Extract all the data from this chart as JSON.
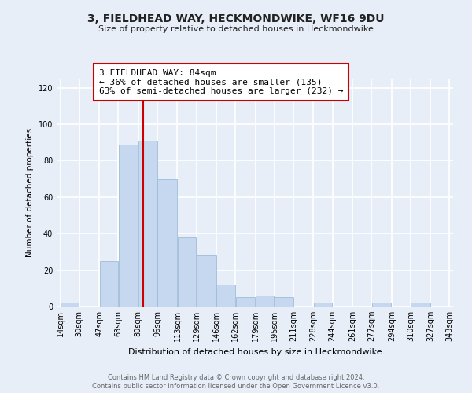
{
  "title": "3, FIELDHEAD WAY, HECKMONDWIKE, WF16 9DU",
  "subtitle": "Size of property relative to detached houses in Heckmondwike",
  "xlabel": "Distribution of detached houses by size in Heckmondwike",
  "ylabel": "Number of detached properties",
  "bar_color": "#c5d8f0",
  "bar_edge_color": "#a0bcd8",
  "red_line_color": "#cc0000",
  "annotation_title": "3 FIELDHEAD WAY: 84sqm",
  "annotation_line1": "← 36% of detached houses are smaller (135)",
  "annotation_line2": "63% of semi-detached houses are larger (232) →",
  "bin_edges": [
    14,
    30,
    47,
    63,
    80,
    96,
    113,
    129,
    146,
    162,
    179,
    195,
    211,
    228,
    244,
    261,
    277,
    294,
    310,
    327,
    343
  ],
  "counts": [
    2,
    0,
    25,
    89,
    91,
    70,
    38,
    28,
    12,
    5,
    6,
    5,
    0,
    2,
    0,
    0,
    2,
    0,
    2,
    0
  ],
  "tick_labels": [
    "14sqm",
    "30sqm",
    "47sqm",
    "63sqm",
    "80sqm",
    "96sqm",
    "113sqm",
    "129sqm",
    "146sqm",
    "162sqm",
    "179sqm",
    "195sqm",
    "211sqm",
    "228sqm",
    "244sqm",
    "261sqm",
    "277sqm",
    "294sqm",
    "310sqm",
    "327sqm",
    "343sqm"
  ],
  "ylim": [
    0,
    125
  ],
  "yticks": [
    0,
    20,
    40,
    60,
    80,
    100,
    120
  ],
  "background_color": "#e8eef8",
  "plot_bg_color": "#e8eef8",
  "grid_color": "#ffffff",
  "footer1": "Contains HM Land Registry data © Crown copyright and database right 2024.",
  "footer2": "Contains public sector information licensed under the Open Government Licence v3.0.",
  "red_line_x": 84
}
